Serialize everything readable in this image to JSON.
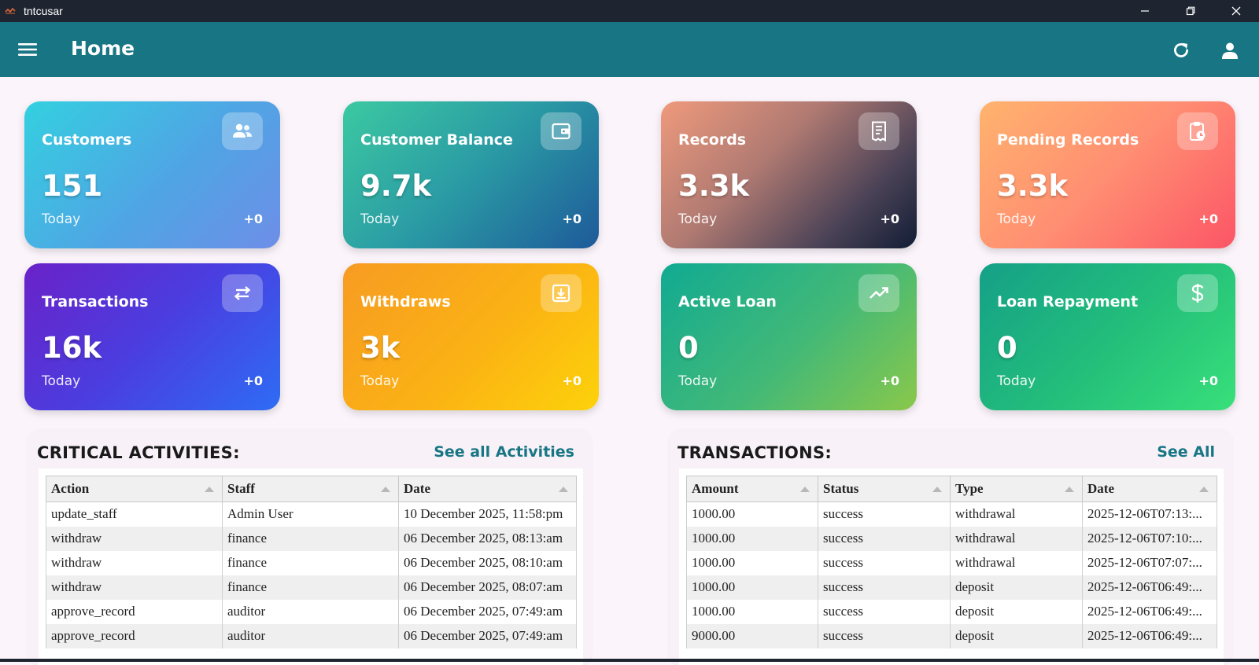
{
  "window": {
    "title": "tntcusar",
    "icon": "app-logo-icon"
  },
  "appbar": {
    "title": "Home",
    "menu_icon": "hamburger-menu-icon",
    "refresh_icon": "refresh-icon",
    "user_icon": "user-icon"
  },
  "cards": [
    {
      "title": "Customers",
      "value": "151",
      "sub": "Today",
      "delta": "+0",
      "icon": "users-icon"
    },
    {
      "title": "Customer Balance",
      "value": "9.7k",
      "sub": "Today",
      "delta": "+0",
      "icon": "wallet-icon"
    },
    {
      "title": "Records",
      "value": "3.3k",
      "sub": "Today",
      "delta": "+0",
      "icon": "receipt-icon"
    },
    {
      "title": "Pending Records",
      "value": "3.3k",
      "sub": "Today",
      "delta": "+0",
      "icon": "clipboard-clock-icon"
    },
    {
      "title": "Transactions",
      "value": "16k",
      "sub": "Today",
      "delta": "+0",
      "icon": "swap-arrows-icon"
    },
    {
      "title": "Withdraws",
      "value": "3k",
      "sub": "Today",
      "delta": "+0",
      "icon": "withdraw-box-icon"
    },
    {
      "title": "Active Loan",
      "value": "0",
      "sub": "Today",
      "delta": "+0",
      "icon": "trending-up-icon"
    },
    {
      "title": "Loan Repayment",
      "value": "0",
      "sub": "Today",
      "delta": "+0",
      "icon": "dollar-icon"
    }
  ],
  "activities": {
    "title": "CRITICAL ACTIVITIES:",
    "link": "See all Activities",
    "columns": [
      "Action",
      "Staff",
      "Date"
    ],
    "rows": [
      [
        "update_staff",
        "Admin User",
        "10 December 2025, 11:58:pm"
      ],
      [
        "withdraw",
        "finance",
        "06 December 2025, 08:13:am"
      ],
      [
        "withdraw",
        "finance",
        "06 December 2025, 08:10:am"
      ],
      [
        "withdraw",
        "finance",
        "06 December 2025, 08:07:am"
      ],
      [
        "approve_record",
        "auditor",
        "06 December 2025, 07:49:am"
      ],
      [
        "approve_record",
        "auditor",
        "06 December 2025, 07:49:am"
      ]
    ]
  },
  "transactions": {
    "title": "TRANSACTIONS:",
    "link": "See All",
    "columns": [
      "Amount",
      "Status",
      "Type",
      "Date"
    ],
    "rows": [
      [
        "1000.00",
        "success",
        "withdrawal",
        "2025-12-06T07:13:..."
      ],
      [
        "1000.00",
        "success",
        "withdrawal",
        "2025-12-06T07:10:..."
      ],
      [
        "1000.00",
        "success",
        "withdrawal",
        "2025-12-06T07:07:..."
      ],
      [
        "1000.00",
        "success",
        "deposit",
        "2025-12-06T06:49:..."
      ],
      [
        "1000.00",
        "success",
        "deposit",
        "2025-12-06T06:49:..."
      ],
      [
        "9000.00",
        "success",
        "deposit",
        "2025-12-06T06:49:..."
      ]
    ]
  }
}
